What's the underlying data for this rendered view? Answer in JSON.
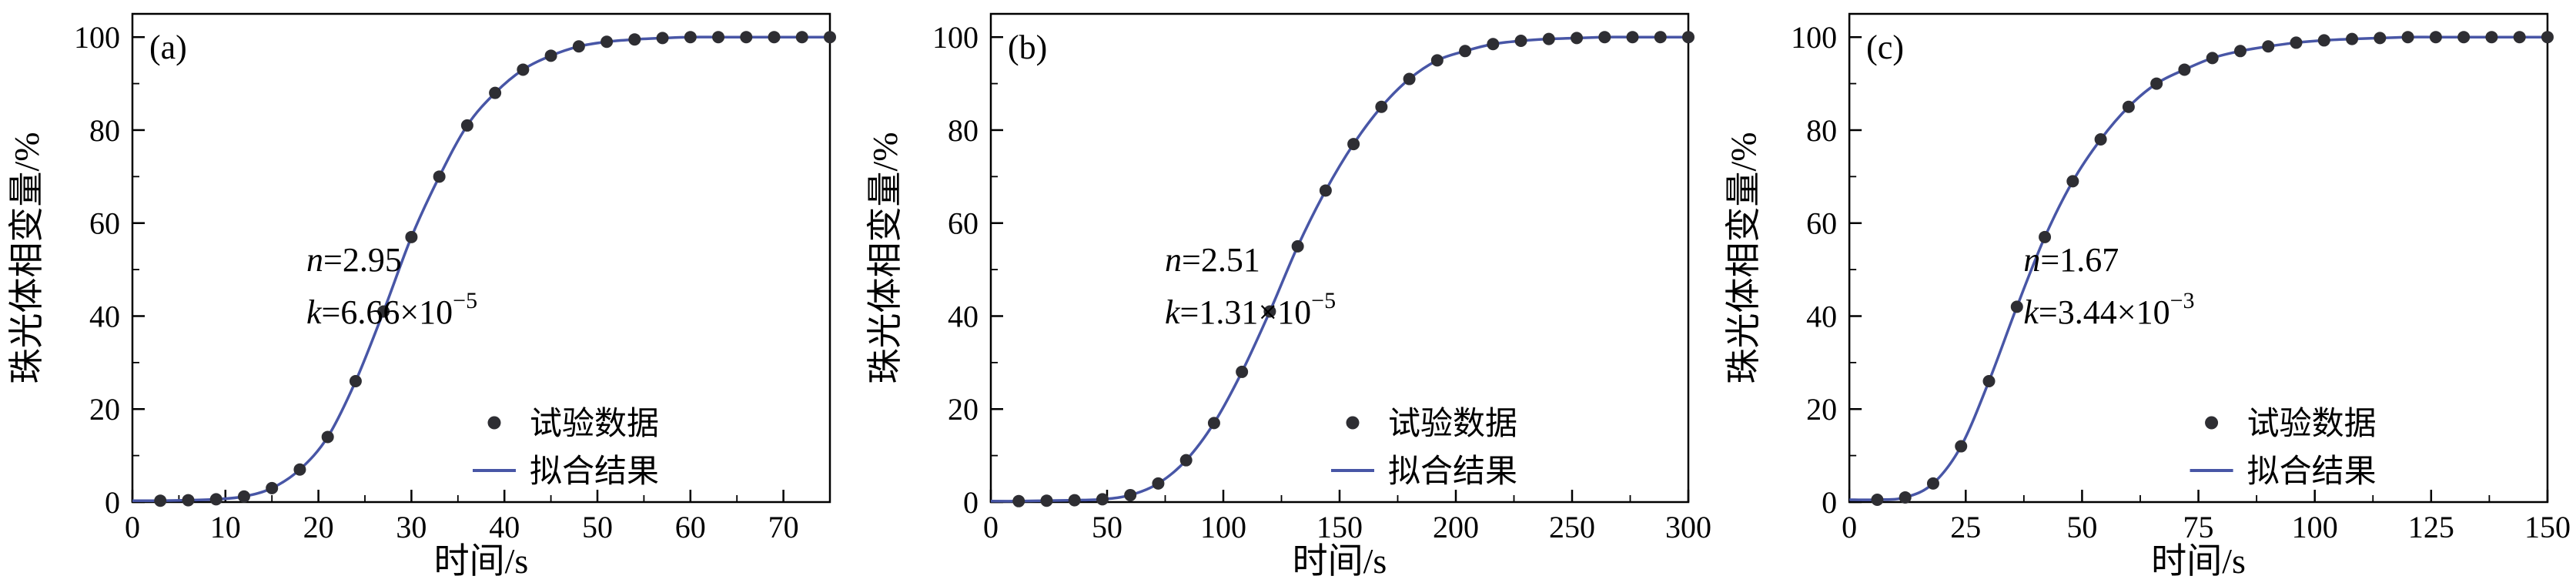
{
  "colors": {
    "background": "#ffffff",
    "axis": "#000000",
    "fit_line": "#4856a6",
    "data_point": "#2e2e33",
    "text": "#000000"
  },
  "chart_data": [
    {
      "type": "scatter",
      "panel_label": "(a)",
      "title": "",
      "xlabel": "时间/s",
      "ylabel": "珠光体相变量/%",
      "xlim": [
        0,
        75
      ],
      "ylim": [
        0,
        100
      ],
      "xticks": [
        0,
        10,
        20,
        30,
        40,
        50,
        60,
        70
      ],
      "yticks": [
        0,
        20,
        40,
        60,
        80,
        100
      ],
      "annotation": {
        "line1_var": "n",
        "line1_rest": "=2.95",
        "line2_var": "k",
        "line2_rest": "=6.66×10",
        "line2_sup": "−5"
      },
      "legend": [
        {
          "marker": "dot",
          "label": "试验数据"
        },
        {
          "marker": "line",
          "label": "拟合结果"
        }
      ],
      "x": [
        3,
        6,
        9,
        12,
        15,
        18,
        21,
        24,
        27,
        30,
        33,
        36,
        39,
        42,
        45,
        48,
        51,
        54,
        57,
        60,
        63,
        66,
        69,
        72,
        75
      ],
      "y": [
        0.3,
        0.4,
        0.6,
        1.2,
        3,
        7,
        14,
        26,
        41,
        57,
        70,
        81,
        88,
        93,
        96,
        98,
        99,
        99.5,
        99.8,
        100,
        100,
        100,
        100,
        100,
        100
      ],
      "series": [
        {
          "name": "试验数据",
          "role": "data",
          "style": "scatter"
        },
        {
          "name": "拟合结果",
          "role": "fit",
          "style": "line"
        }
      ]
    },
    {
      "type": "scatter",
      "panel_label": "(b)",
      "title": "",
      "xlabel": "时间/s",
      "ylabel": "珠光体相变量/%",
      "xlim": [
        0,
        300
      ],
      "ylim": [
        0,
        100
      ],
      "xticks": [
        0,
        50,
        100,
        150,
        200,
        250,
        300
      ],
      "yticks": [
        0,
        20,
        40,
        60,
        80,
        100
      ],
      "annotation": {
        "line1_var": "n",
        "line1_rest": "=2.51",
        "line2_var": "k",
        "line2_rest": "=1.31×10",
        "line2_sup": "−5"
      },
      "legend": [
        {
          "marker": "dot",
          "label": "试验数据"
        },
        {
          "marker": "line",
          "label": "拟合结果"
        }
      ],
      "x": [
        12,
        24,
        36,
        48,
        60,
        72,
        84,
        96,
        108,
        120,
        132,
        144,
        156,
        168,
        180,
        192,
        204,
        216,
        228,
        240,
        252,
        264,
        276,
        288,
        300
      ],
      "y": [
        0.2,
        0.3,
        0.4,
        0.6,
        1.5,
        4,
        9,
        17,
        28,
        41,
        55,
        67,
        77,
        85,
        91,
        95,
        97,
        98.5,
        99.2,
        99.6,
        99.8,
        100,
        100,
        100,
        100
      ],
      "series": [
        {
          "name": "试验数据",
          "role": "data",
          "style": "scatter"
        },
        {
          "name": "拟合结果",
          "role": "fit",
          "style": "line"
        }
      ]
    },
    {
      "type": "scatter",
      "panel_label": "(c)",
      "title": "",
      "xlabel": "时间/s",
      "ylabel": "珠光体相变量/%",
      "xlim": [
        0,
        150
      ],
      "ylim": [
        0,
        100
      ],
      "xticks": [
        0,
        25,
        50,
        75,
        100,
        125,
        150
      ],
      "yticks": [
        0,
        20,
        40,
        60,
        80,
        100
      ],
      "annotation": {
        "line1_var": "n",
        "line1_rest": "=1.67",
        "line2_var": "k",
        "line2_rest": "=3.44×10",
        "line2_sup": "−3"
      },
      "legend": [
        {
          "marker": "dot",
          "label": "试验数据"
        },
        {
          "marker": "line",
          "label": "拟合结果"
        }
      ],
      "x": [
        6,
        12,
        18,
        24,
        30,
        36,
        42,
        48,
        54,
        60,
        66,
        72,
        78,
        84,
        90,
        96,
        102,
        108,
        114,
        120,
        126,
        132,
        138,
        144,
        150
      ],
      "y": [
        0.5,
        1,
        4,
        12,
        26,
        42,
        57,
        69,
        78,
        85,
        90,
        93,
        95.5,
        97,
        98,
        98.8,
        99.3,
        99.6,
        99.8,
        100,
        100,
        100,
        100,
        100,
        100
      ],
      "series": [
        {
          "name": "试验数据",
          "role": "data",
          "style": "scatter"
        },
        {
          "name": "拟合结果",
          "role": "fit",
          "style": "line"
        }
      ]
    }
  ]
}
